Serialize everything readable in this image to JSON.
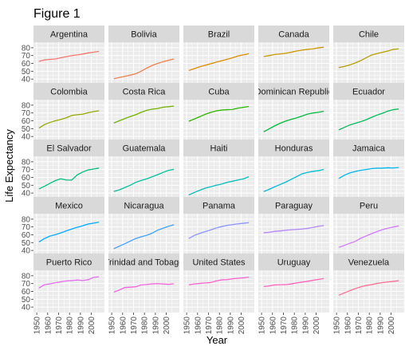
{
  "figure_title": "Figure 1",
  "chart_data": {
    "type": "line",
    "title": "Figure 1",
    "xlabel": "Year",
    "ylabel": "Life Expectancy",
    "xlim": [
      1947,
      2012
    ],
    "ylim": [
      33,
      87
    ],
    "x_ticks": [
      1950,
      1960,
      1970,
      1980,
      1990,
      2000
    ],
    "y_ticks": [
      40,
      50,
      60,
      70,
      80
    ],
    "x": [
      1952,
      1957,
      1962,
      1967,
      1972,
      1977,
      1982,
      1987,
      1992,
      1997,
      2002,
      2007
    ],
    "grid": true,
    "facets": [
      {
        "name": "Argentina",
        "color": "#F8766D",
        "values": [
          62.5,
          64.4,
          65.1,
          65.6,
          67.1,
          68.5,
          69.9,
          70.8,
          71.9,
          73.3,
          74.3,
          75.3
        ]
      },
      {
        "name": "Bolivia",
        "color": "#F07E4A",
        "values": [
          40.4,
          41.9,
          43.4,
          45.0,
          46.7,
          50.0,
          53.9,
          57.3,
          59.9,
          62.1,
          63.9,
          65.6
        ]
      },
      {
        "name": "Brazil",
        "color": "#E18A00",
        "values": [
          50.9,
          53.3,
          55.7,
          57.6,
          59.5,
          61.5,
          63.3,
          65.2,
          67.1,
          69.4,
          71.0,
          72.4
        ]
      },
      {
        "name": "Canada",
        "color": "#CC9600",
        "values": [
          68.8,
          70.0,
          71.3,
          72.1,
          72.9,
          74.2,
          75.8,
          76.9,
          77.9,
          78.6,
          79.8,
          80.7
        ]
      },
      {
        "name": "Chile",
        "color": "#B49F00",
        "values": [
          54.7,
          56.1,
          57.9,
          60.5,
          63.4,
          67.1,
          70.6,
          72.5,
          74.1,
          75.8,
          77.9,
          78.6
        ]
      },
      {
        "name": "Colombia",
        "color": "#96A900",
        "values": [
          50.6,
          55.1,
          57.9,
          60.0,
          61.6,
          63.8,
          66.7,
          67.8,
          68.4,
          70.3,
          71.7,
          72.9
        ]
      },
      {
        "name": "Costa Rica",
        "color": "#6FB200",
        "values": [
          57.2,
          60.0,
          62.8,
          65.4,
          67.8,
          70.8,
          73.4,
          74.8,
          75.7,
          77.3,
          78.1,
          78.8
        ]
      },
      {
        "name": "Cuba",
        "color": "#2DB600",
        "values": [
          59.4,
          62.3,
          65.2,
          68.3,
          70.7,
          72.6,
          73.7,
          74.2,
          74.4,
          76.2,
          77.2,
          78.3
        ]
      },
      {
        "name": "Dominican Republic",
        "color": "#00BA38",
        "values": [
          45.9,
          49.8,
          53.5,
          56.8,
          59.6,
          61.8,
          63.7,
          66.0,
          68.5,
          69.9,
          70.8,
          72.2
        ]
      },
      {
        "name": "Ecuador",
        "color": "#00BC59",
        "values": [
          48.4,
          51.4,
          54.6,
          56.7,
          58.8,
          61.3,
          64.3,
          67.2,
          69.6,
          72.3,
          74.2,
          75.0
        ]
      },
      {
        "name": "El Salvador",
        "color": "#00BF7D",
        "values": [
          45.3,
          48.6,
          52.3,
          55.9,
          58.2,
          56.7,
          56.6,
          63.2,
          66.8,
          69.5,
          70.7,
          71.9
        ]
      },
      {
        "name": "Guatemala",
        "color": "#00C09E",
        "values": [
          42.0,
          44.1,
          47.0,
          50.0,
          53.7,
          56.0,
          58.1,
          60.8,
          63.4,
          66.3,
          68.98,
          70.3
        ]
      },
      {
        "name": "Haiti",
        "color": "#00BFBC",
        "values": [
          37.6,
          40.7,
          43.6,
          46.2,
          48.0,
          49.9,
          51.5,
          53.6,
          55.1,
          56.7,
          58.1,
          60.9
        ]
      },
      {
        "name": "Honduras",
        "color": "#00BCD6",
        "values": [
          41.9,
          44.7,
          48.0,
          50.9,
          53.9,
          57.4,
          60.9,
          64.5,
          66.4,
          67.7,
          68.6,
          70.2
        ]
      },
      {
        "name": "Jamaica",
        "color": "#00B5EE",
        "values": [
          58.5,
          62.6,
          65.6,
          67.5,
          69.0,
          70.1,
          71.2,
          71.8,
          71.8,
          72.3,
          72.0,
          72.6
        ]
      },
      {
        "name": "Mexico",
        "color": "#00ABFD",
        "values": [
          50.8,
          55.2,
          58.3,
          60.1,
          62.4,
          65.0,
          67.4,
          69.5,
          71.5,
          73.7,
          74.9,
          76.2
        ]
      },
      {
        "name": "Nicaragua",
        "color": "#3DA0FF",
        "values": [
          42.3,
          45.4,
          48.6,
          51.9,
          55.2,
          57.5,
          59.3,
          62.0,
          65.8,
          68.4,
          70.8,
          72.9
        ]
      },
      {
        "name": "Panama",
        "color": "#8B93FF",
        "values": [
          55.2,
          59.2,
          61.8,
          64.1,
          66.2,
          68.7,
          70.5,
          72.0,
          73.0,
          74.0,
          74.7,
          75.5
        ]
      },
      {
        "name": "Paraguay",
        "color": "#B385FF",
        "values": [
          62.6,
          63.2,
          64.4,
          64.9,
          65.8,
          66.4,
          66.9,
          67.4,
          68.2,
          69.4,
          70.8,
          71.8
        ]
      },
      {
        "name": "Peru",
        "color": "#D277FF",
        "values": [
          43.9,
          46.3,
          49.1,
          51.4,
          55.4,
          58.4,
          61.4,
          64.1,
          66.5,
          68.4,
          69.9,
          71.4
        ]
      },
      {
        "name": "Puerto Rico",
        "color": "#E76BF3",
        "values": [
          64.3,
          68.5,
          69.6,
          71.1,
          72.2,
          73.4,
          73.8,
          74.6,
          73.9,
          74.9,
          77.8,
          78.7
        ]
      },
      {
        "name": "Trinidad and Tobago",
        "color": "#F564E3",
        "values": [
          59.1,
          61.8,
          64.9,
          65.4,
          65.9,
          68.3,
          68.8,
          69.6,
          69.9,
          69.5,
          68.98,
          69.8
        ]
      },
      {
        "name": "United States",
        "color": "#FD61D1",
        "values": [
          68.4,
          69.5,
          70.2,
          70.8,
          71.3,
          73.4,
          74.7,
          75.0,
          76.1,
          76.8,
          77.3,
          78.2
        ]
      },
      {
        "name": "Uruguay",
        "color": "#FF62BC",
        "values": [
          66.1,
          67.0,
          68.3,
          68.5,
          68.7,
          69.5,
          70.8,
          71.9,
          72.8,
          74.2,
          75.3,
          76.4
        ]
      },
      {
        "name": "Venezuela",
        "color": "#FF6C91",
        "values": [
          55.1,
          57.9,
          60.8,
          63.5,
          65.7,
          67.5,
          68.6,
          70.2,
          71.2,
          72.1,
          72.8,
          73.7
        ]
      }
    ]
  }
}
